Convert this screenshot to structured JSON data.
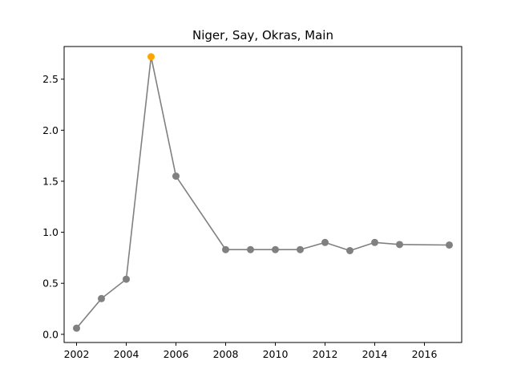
{
  "chart_data": {
    "type": "line",
    "title": "Niger, Say, Okras, Main",
    "xlabel": "",
    "ylabel": "",
    "xlim": [
      2001.5,
      2017.5
    ],
    "ylim": [
      -0.08,
      2.82
    ],
    "xticks": [
      2002,
      2004,
      2006,
      2008,
      2010,
      2012,
      2014,
      2016
    ],
    "yticks": [
      0.0,
      0.5,
      1.0,
      1.5,
      2.0,
      2.5
    ],
    "ytick_labels": [
      "0.0",
      "0.5",
      "1.0",
      "1.5",
      "2.0",
      "2.5"
    ],
    "grid": false,
    "series": [
      {
        "color": "#808080",
        "highlight_color": "#ffa500",
        "highlight_index": 3,
        "x": [
          2002,
          2003,
          2004,
          2005,
          2006,
          2008,
          2009,
          2010,
          2011,
          2012,
          2013,
          2014,
          2015,
          2017
        ],
        "values": [
          0.06,
          0.35,
          0.54,
          2.72,
          1.55,
          0.83,
          0.83,
          0.83,
          0.83,
          0.9,
          0.82,
          0.9,
          0.88,
          0.875
        ]
      }
    ]
  }
}
